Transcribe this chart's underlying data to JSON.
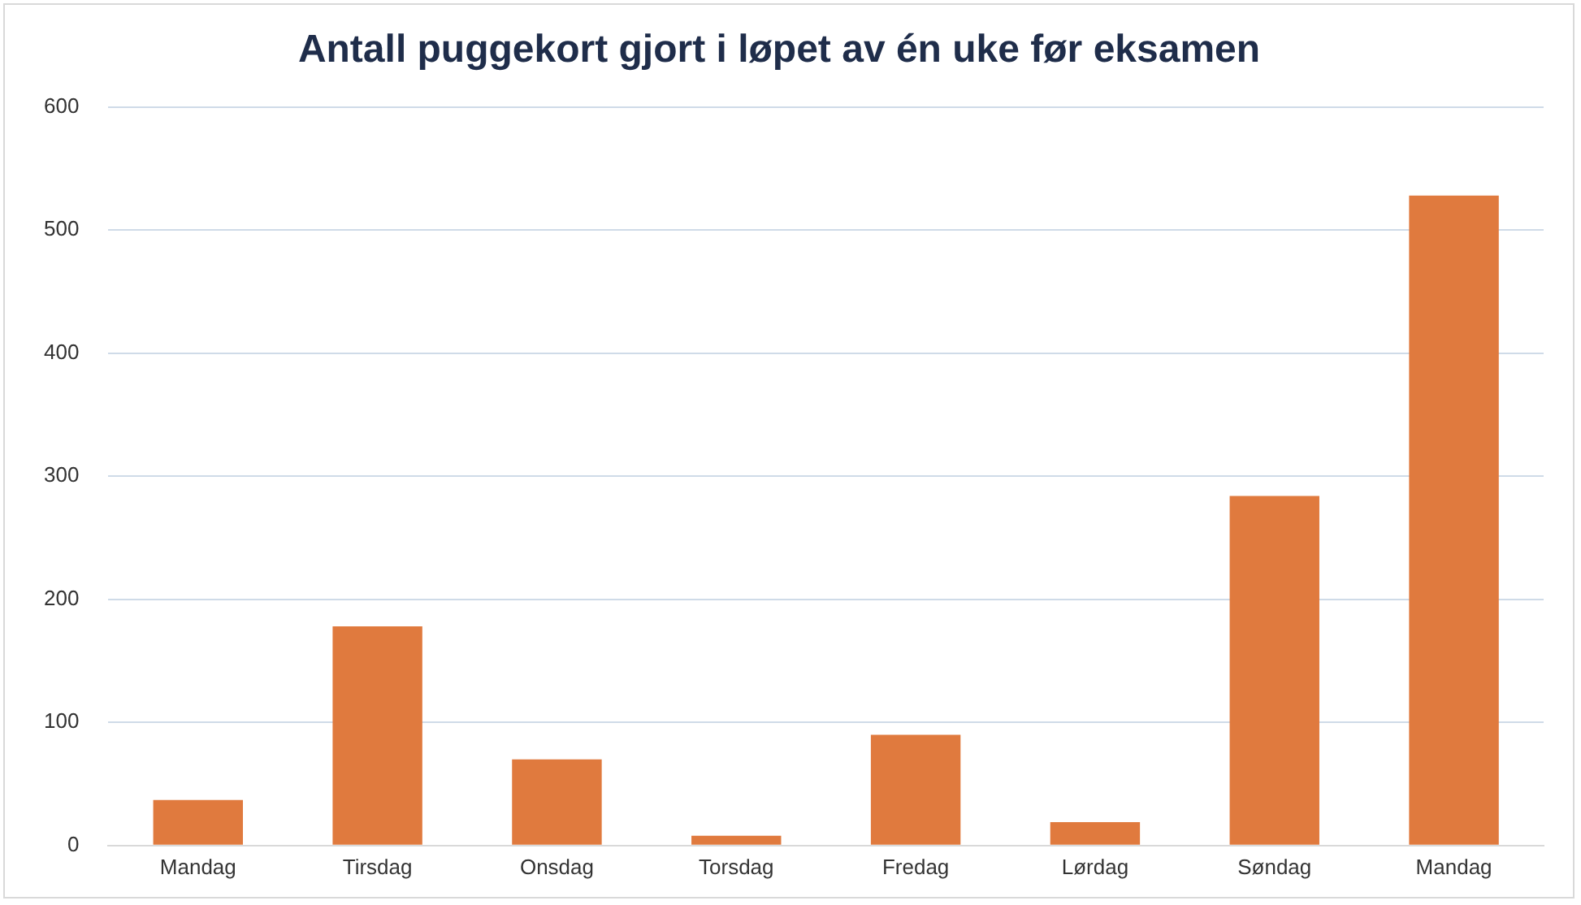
{
  "chart_data": {
    "type": "bar",
    "title": "Antall puggekort gjort i løpet av én uke før eksamen",
    "categories": [
      "Mandag",
      "Tirsdag",
      "Onsdag",
      "Torsdag",
      "Fredag",
      "Lørdag",
      "Søndag",
      "Mandag"
    ],
    "values": [
      37,
      178,
      70,
      8,
      90,
      19,
      284,
      528
    ],
    "color": "#e07a3e",
    "ylim": [
      0,
      600
    ],
    "yticks": [
      0,
      100,
      200,
      300,
      400,
      500,
      600
    ],
    "grid": "y",
    "legend": false
  }
}
